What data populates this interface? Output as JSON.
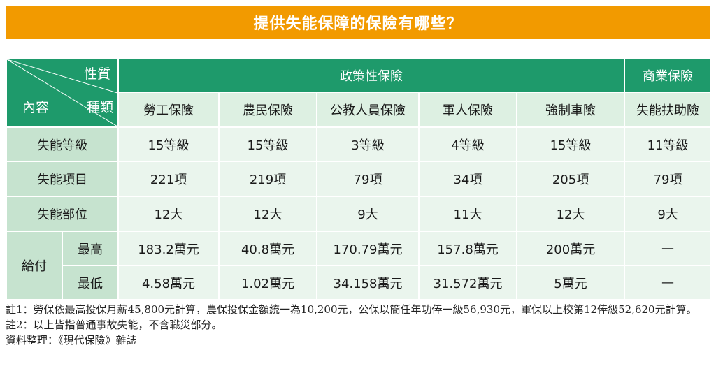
{
  "title": "提供失能保障的保險有哪些？",
  "corner": {
    "nature": "性質",
    "type": "種類",
    "content": "內容"
  },
  "groups": {
    "policy": "政策性保險",
    "commercial": "商業保險"
  },
  "columns": [
    "勞工保險",
    "農民保險",
    "公教人員保險",
    "軍人保險",
    "強制車險",
    "失能扶助險"
  ],
  "rows": [
    {
      "label": "失能等級",
      "values": [
        "15等級",
        "15等級",
        "3等級",
        "4等級",
        "15等級",
        "11等級"
      ]
    },
    {
      "label": "失能項目",
      "values": [
        "221項",
        "219項",
        "79項",
        "34項",
        "205項",
        "79項"
      ]
    },
    {
      "label": "失能部位",
      "values": [
        "12大",
        "12大",
        "9大",
        "11大",
        "12大",
        "9大"
      ]
    }
  ],
  "payout": {
    "label": "給付",
    "max": {
      "label": "最高",
      "values": [
        "183.2萬元",
        "40.8萬元",
        "170.79萬元",
        "157.8萬元",
        "200萬元",
        "—"
      ]
    },
    "min": {
      "label": "最低",
      "values": [
        "4.58萬元",
        "1.02萬元",
        "34.158萬元",
        "31.572萬元",
        "5萬元",
        "—"
      ]
    }
  },
  "notes": [
    "註1：勞保依最高投保月薪45,800元計算，農保投保金額統一為10,200元，公保以簡任年功俸一級56,930元，軍保以上校第12俸級52,620元計算。",
    "註2：以上皆指普通事故失能，不含職災部分。",
    "資料整理：《現代保險》雜誌"
  ],
  "colors": {
    "title_bg": "#f29a00",
    "header_bg": "#1e9a6b",
    "label_bg": "#c6e3cf",
    "cell_bg": "#eaf5ed"
  }
}
